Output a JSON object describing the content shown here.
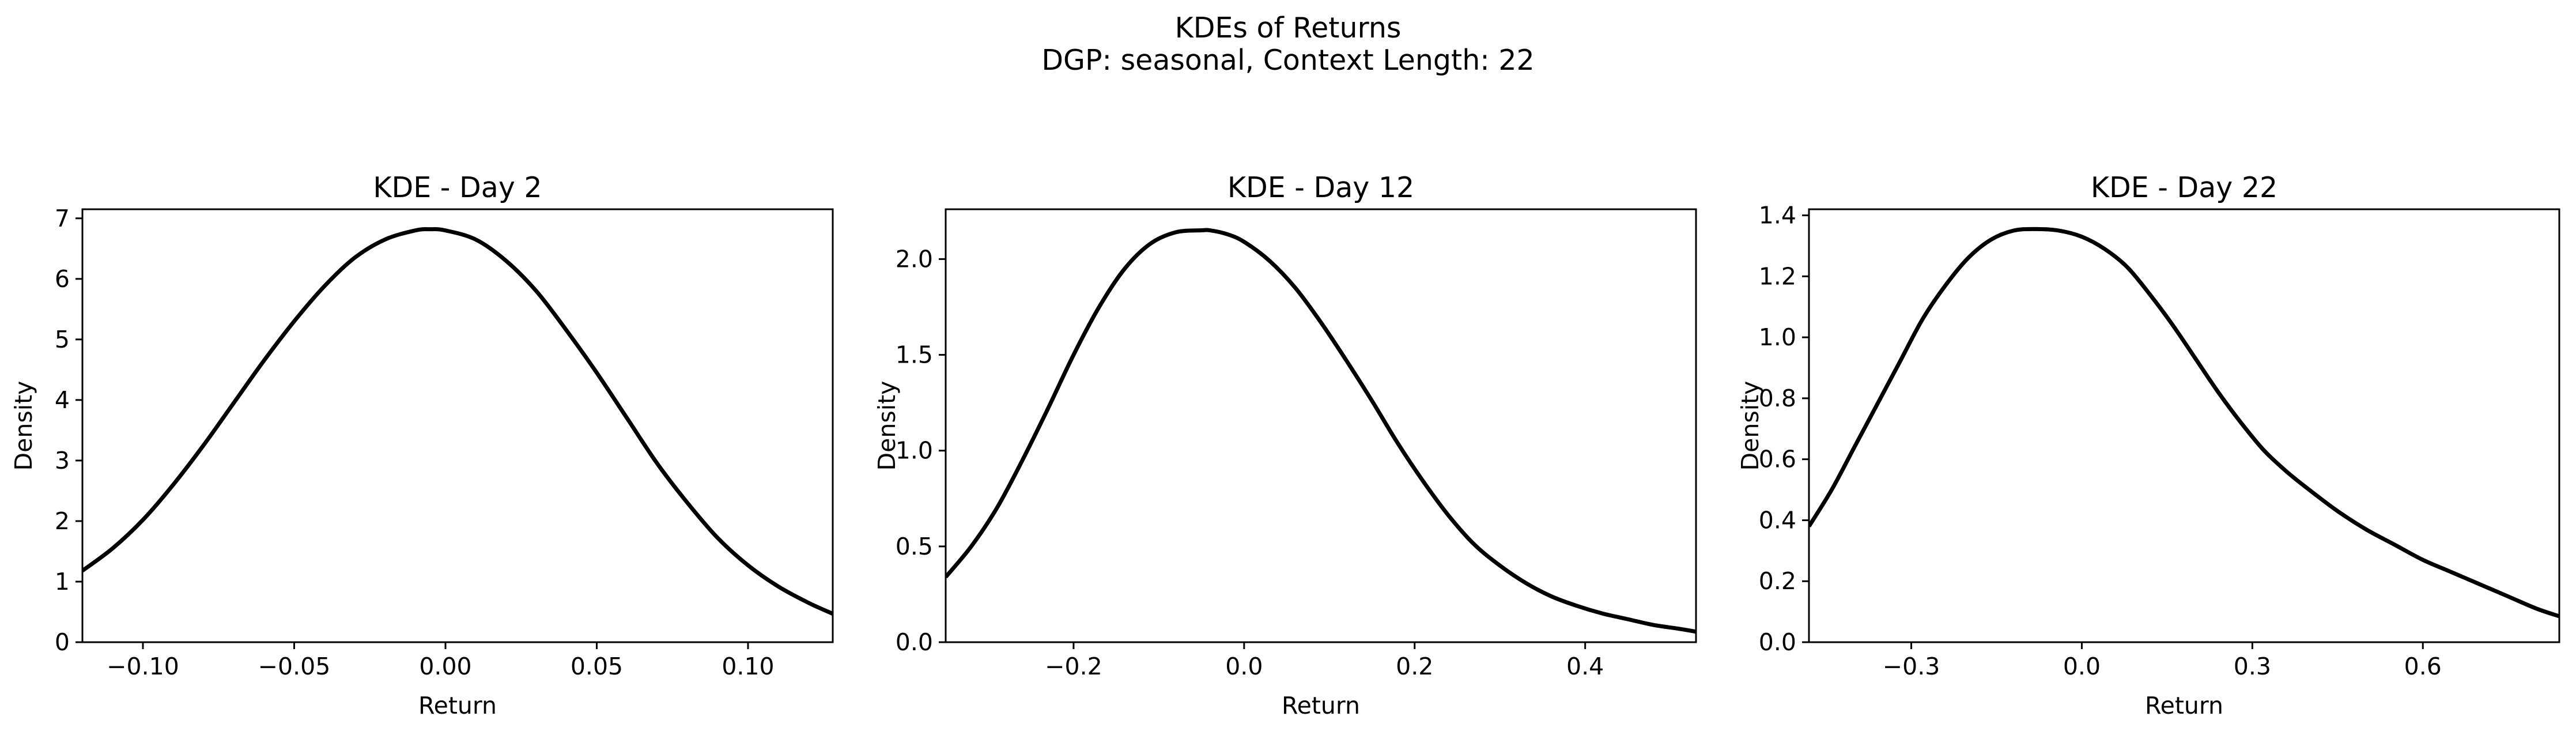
{
  "figure": {
    "title": "KDEs of Returns",
    "subtitle": "DGP: seasonal, Context Length: 22"
  },
  "chart_data": [
    {
      "type": "line",
      "title": "KDE - Day 2",
      "xlabel": "Return",
      "ylabel": "Density",
      "xlim": [
        -0.12,
        0.128
      ],
      "ylim": [
        0,
        7.15
      ],
      "xticks": [
        -0.1,
        -0.05,
        0.0,
        0.05,
        0.1
      ],
      "xtick_labels": [
        "−0.10",
        "−0.05",
        "0.00",
        "0.05",
        "0.10"
      ],
      "yticks": [
        0,
        1,
        2,
        3,
        4,
        5,
        6,
        7
      ],
      "ytick_labels": [
        "0",
        "1",
        "2",
        "3",
        "4",
        "5",
        "6",
        "7"
      ],
      "grid": false,
      "series": [
        {
          "color": "#000000",
          "x": [
            -0.12,
            -0.11,
            -0.1,
            -0.09,
            -0.08,
            -0.07,
            -0.06,
            -0.05,
            -0.04,
            -0.03,
            -0.02,
            -0.01,
            -0.005,
            0.0,
            0.01,
            0.02,
            0.03,
            0.04,
            0.05,
            0.06,
            0.07,
            0.08,
            0.09,
            0.1,
            0.11,
            0.12,
            0.128
          ],
          "y": [
            1.18,
            1.55,
            2.02,
            2.6,
            3.25,
            3.95,
            4.65,
            5.3,
            5.88,
            6.35,
            6.65,
            6.8,
            6.82,
            6.8,
            6.65,
            6.3,
            5.8,
            5.15,
            4.45,
            3.7,
            2.95,
            2.3,
            1.72,
            1.27,
            0.92,
            0.65,
            0.47
          ]
        }
      ]
    },
    {
      "type": "line",
      "title": "KDE - Day 12",
      "xlabel": "Return",
      "ylabel": "Density",
      "xlim": [
        -0.35,
        0.53
      ],
      "ylim": [
        0,
        2.26
      ],
      "xticks": [
        -0.2,
        0.0,
        0.2,
        0.4
      ],
      "xtick_labels": [
        "−0.2",
        "0.0",
        "0.2",
        "0.4"
      ],
      "yticks": [
        0.0,
        0.5,
        1.0,
        1.5,
        2.0
      ],
      "ytick_labels": [
        "0.0",
        "0.5",
        "1.0",
        "1.5",
        "2.0"
      ],
      "grid": false,
      "series": [
        {
          "color": "#000000",
          "x": [
            -0.35,
            -0.32,
            -0.29,
            -0.26,
            -0.23,
            -0.2,
            -0.17,
            -0.14,
            -0.11,
            -0.08,
            -0.05,
            -0.04,
            -0.02,
            0.0,
            0.03,
            0.06,
            0.09,
            0.12,
            0.15,
            0.18,
            0.21,
            0.24,
            0.27,
            0.3,
            0.33,
            0.36,
            0.39,
            0.42,
            0.45,
            0.48,
            0.51,
            0.53
          ],
          "y": [
            0.34,
            0.5,
            0.7,
            0.95,
            1.22,
            1.5,
            1.75,
            1.95,
            2.08,
            2.14,
            2.15,
            2.15,
            2.13,
            2.09,
            1.99,
            1.85,
            1.67,
            1.47,
            1.26,
            1.04,
            0.84,
            0.66,
            0.51,
            0.4,
            0.31,
            0.24,
            0.19,
            0.15,
            0.12,
            0.09,
            0.07,
            0.055
          ]
        }
      ]
    },
    {
      "type": "line",
      "title": "KDE - Day 22",
      "xlabel": "Return",
      "ylabel": "Density",
      "xlim": [
        -0.48,
        0.84
      ],
      "ylim": [
        0,
        1.42
      ],
      "xticks": [
        -0.3,
        0.0,
        0.3,
        0.6
      ],
      "xtick_labels": [
        "−0.3",
        "0.0",
        "0.3",
        "0.6"
      ],
      "yticks": [
        0.0,
        0.2,
        0.4,
        0.6,
        0.8,
        1.0,
        1.2,
        1.4
      ],
      "ytick_labels": [
        "0.0",
        "0.2",
        "0.4",
        "0.6",
        "0.8",
        "1.0",
        "1.2",
        "1.4"
      ],
      "grid": false,
      "series": [
        {
          "color": "#000000",
          "x": [
            -0.48,
            -0.44,
            -0.4,
            -0.36,
            -0.32,
            -0.28,
            -0.24,
            -0.2,
            -0.16,
            -0.12,
            -0.08,
            -0.04,
            0.0,
            0.04,
            0.08,
            0.12,
            0.16,
            0.2,
            0.24,
            0.28,
            0.32,
            0.36,
            0.4,
            0.45,
            0.5,
            0.55,
            0.6,
            0.65,
            0.7,
            0.75,
            0.8,
            0.84
          ],
          "y": [
            0.38,
            0.5,
            0.64,
            0.78,
            0.92,
            1.06,
            1.17,
            1.26,
            1.32,
            1.35,
            1.355,
            1.35,
            1.33,
            1.29,
            1.23,
            1.14,
            1.04,
            0.93,
            0.82,
            0.72,
            0.63,
            0.56,
            0.5,
            0.43,
            0.37,
            0.32,
            0.27,
            0.23,
            0.19,
            0.15,
            0.11,
            0.085
          ]
        }
      ]
    }
  ]
}
